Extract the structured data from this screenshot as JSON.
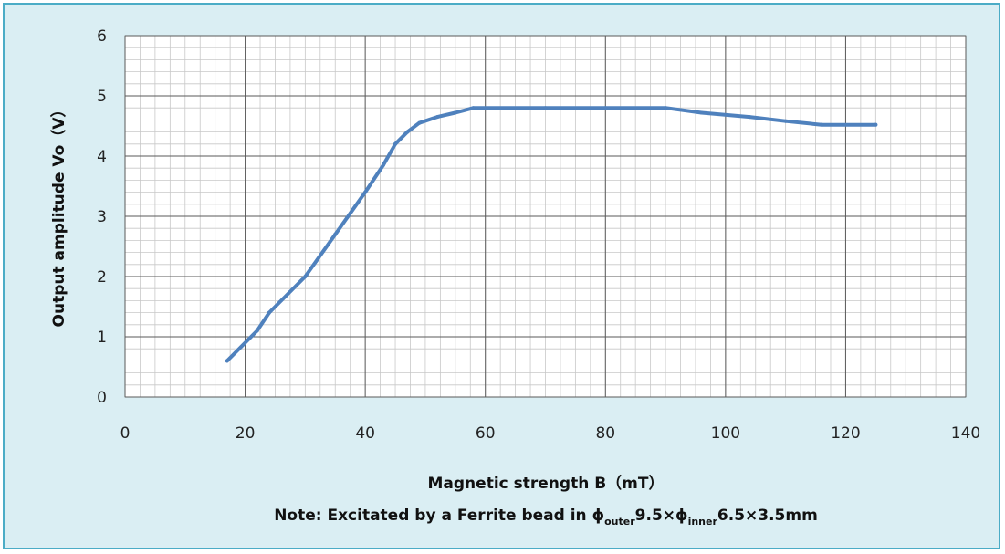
{
  "chart_data": {
    "type": "line",
    "xlabel": "Magnetic strength  B（mT）",
    "ylabel": "Output amplitude  Vo（V）",
    "note": {
      "prefix": "Note: Excitated by a Ferrite bead in ϕ",
      "sub1": "outer",
      "mid": "9.5×ϕ",
      "sub2": "inner",
      "suffix": "6.5×3.5mm"
    },
    "xlim": [
      0,
      140
    ],
    "ylim": [
      0,
      6
    ],
    "xticks": [
      0,
      20,
      40,
      60,
      80,
      100,
      120,
      140
    ],
    "yticks": [
      0,
      1,
      2,
      3,
      4,
      5,
      6
    ],
    "grid": true,
    "line_color": "#4f81bd",
    "series": [
      {
        "x": [
          17,
          22,
          24,
          30,
          35,
          40,
          43,
          45,
          47,
          49,
          52,
          55,
          58,
          70,
          80,
          90,
          96,
          104,
          110,
          116,
          125
        ],
        "y": [
          0.6,
          1.1,
          1.4,
          2.0,
          2.7,
          3.4,
          3.85,
          4.2,
          4.4,
          4.55,
          4.65,
          4.72,
          4.8,
          4.8,
          4.8,
          4.8,
          4.72,
          4.65,
          4.58,
          4.52,
          4.52
        ]
      }
    ]
  }
}
